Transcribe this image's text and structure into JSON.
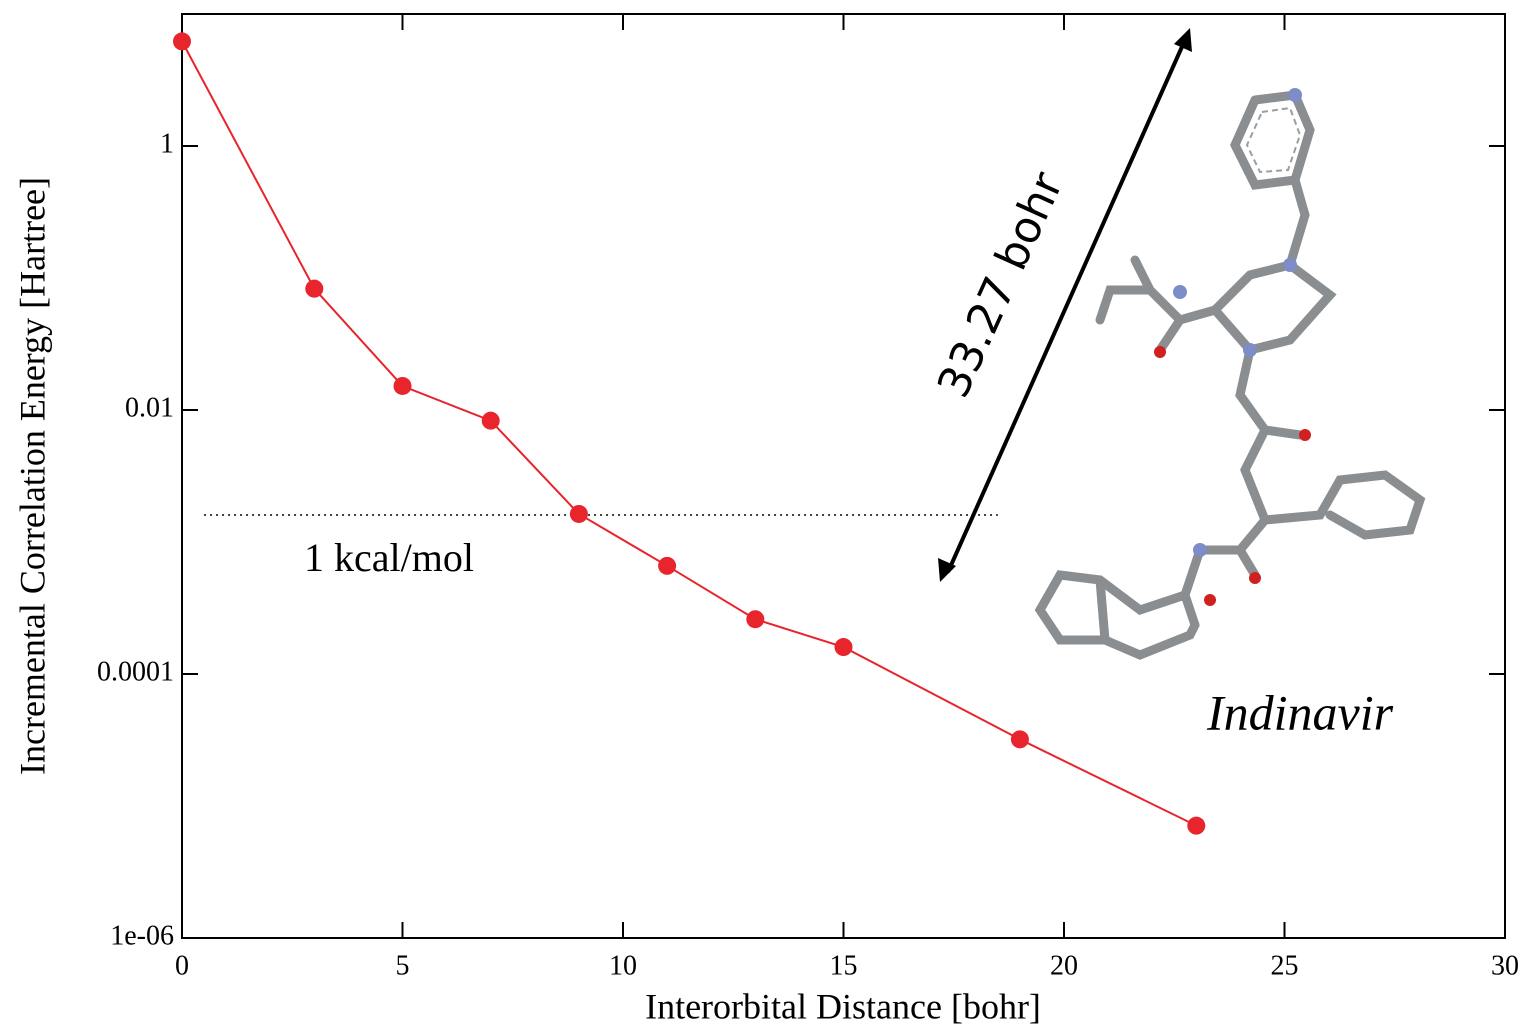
{
  "chart_data": {
    "type": "line",
    "x": [
      0,
      3,
      5,
      7,
      9,
      11,
      13,
      15,
      19,
      23
    ],
    "values": [
      6.2,
      0.083,
      0.0152,
      0.0083,
      0.00163,
      0.00066,
      0.00026,
      0.00016,
      3.2e-05,
      7.1e-06
    ],
    "color": "#e8242c",
    "xlabel": "Interorbital Distance [bohr]",
    "ylabel": "Incremental Correlation Energy [Hartree]",
    "xlim": [
      0,
      30
    ],
    "xticks": [
      0,
      5,
      10,
      15,
      20,
      25,
      30
    ],
    "ylim": [
      1e-06,
      10
    ],
    "yscale": "log",
    "yticks": [
      {
        "value": 1e-06,
        "label": "1e-06"
      },
      0.0001,
      0.01,
      1
    ],
    "grid": false,
    "reference_line": {
      "value": 0.0016,
      "x": [
        0.5,
        18.5
      ],
      "label": "1 kcal/mol"
    },
    "annotations": [
      "33.27 bohr",
      "Indinavir"
    ]
  }
}
